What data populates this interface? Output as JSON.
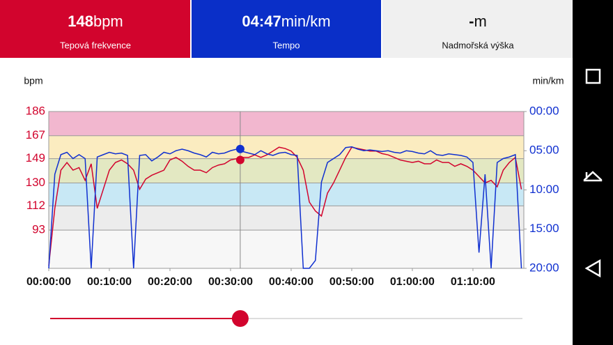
{
  "header": {
    "tiles": [
      {
        "value": "148",
        "unit": "bpm",
        "label": "Tepová frekvence"
      },
      {
        "value": "04:47",
        "unit": "min/km",
        "label": "Tempo"
      },
      {
        "value": "-",
        "unit": "m",
        "label": "Nadmořská výška"
      }
    ]
  },
  "chart_data": {
    "type": "line",
    "y_label": "bpm",
    "y2_label": "min/km",
    "xlim": [
      0,
      78.4
    ],
    "xticks": [
      {
        "value": 0,
        "label": "00:00:00"
      },
      {
        "value": 10,
        "label": "00:10:00"
      },
      {
        "value": 20,
        "label": "00:20:00"
      },
      {
        "value": 30,
        "label": "00:30:00"
      },
      {
        "value": 40,
        "label": "00:40:00"
      },
      {
        "value": 50,
        "label": "00:50:00"
      },
      {
        "value": 60,
        "label": "01:00:00"
      },
      {
        "value": 70,
        "label": "01:10:00"
      }
    ],
    "ylim": [
      63,
      186
    ],
    "yticks": [
      93,
      112,
      130,
      149,
      167,
      186
    ],
    "y2lim": [
      20,
      0
    ],
    "y2ticks": [
      {
        "value": 0,
        "label": "00:00"
      },
      {
        "value": 5,
        "label": "05:00"
      },
      {
        "value": 10,
        "label": "10:00"
      },
      {
        "value": 15,
        "label": "15:00"
      },
      {
        "value": 20,
        "label": "20:00"
      }
    ],
    "zone_colors": [
      "#f7f7f7",
      "#ececec",
      "#c8e8f5",
      "#e3e8c2",
      "#fbecc0",
      "#f2b7cf"
    ],
    "x": [
      0,
      1,
      2,
      3,
      4,
      5,
      6,
      7,
      8,
      9,
      10,
      11,
      12,
      13,
      14,
      15,
      16,
      17,
      18,
      19,
      20,
      21,
      22,
      23,
      24,
      25,
      26,
      27,
      28,
      29,
      30,
      31,
      32,
      33,
      34,
      35,
      36,
      37,
      38,
      39,
      40,
      41,
      42,
      43,
      44,
      45,
      46,
      47,
      48,
      49,
      50,
      51,
      52,
      53,
      54,
      55,
      56,
      57,
      58,
      59,
      60,
      61,
      62,
      63,
      64,
      65,
      66,
      67,
      68,
      69,
      70,
      71,
      72,
      73,
      74,
      75,
      76,
      77,
      78
    ],
    "series": [
      {
        "color": "#d2042d",
        "values": [
          65,
          110,
          140,
          146,
          140,
          142,
          132,
          145,
          110,
          125,
          140,
          146,
          148,
          145,
          140,
          125,
          133,
          136,
          138,
          140,
          148,
          150,
          147,
          143,
          140,
          140,
          138,
          142,
          144,
          145,
          148,
          149,
          150,
          150,
          152,
          150,
          152,
          155,
          158,
          157,
          155,
          150,
          140,
          115,
          108,
          104,
          122,
          130,
          140,
          150,
          158,
          157,
          156,
          155,
          155,
          153,
          152,
          150,
          148,
          147,
          146,
          147,
          145,
          145,
          148,
          146,
          146,
          143,
          145,
          143,
          140,
          135,
          130,
          132,
          127,
          140,
          146,
          150,
          125
        ]
      },
      {
        "color": "#1030d0",
        "axis": "y2",
        "values": [
          20,
          8,
          5.5,
          5.2,
          6,
          5.5,
          6,
          20,
          5.8,
          5.5,
          5.2,
          5.4,
          5.3,
          5.6,
          20,
          5.6,
          5.5,
          6.3,
          5.8,
          5.2,
          5.4,
          5.0,
          4.8,
          5.0,
          5.3,
          5.5,
          5.8,
          5.2,
          5.4,
          5.3,
          5.0,
          4.8,
          5.1,
          5.3,
          5.5,
          5.0,
          5.4,
          5.6,
          5.3,
          5.2,
          5.5,
          5.6,
          20,
          20,
          19,
          9,
          6.5,
          6,
          5.5,
          4.6,
          4.5,
          4.8,
          5.0,
          4.9,
          5.0,
          5.1,
          5.0,
          5.2,
          5.3,
          5.0,
          5.1,
          5.3,
          5.4,
          5.0,
          5.5,
          5.6,
          5.4,
          5.5,
          5.6,
          5.8,
          6.5,
          18,
          8,
          20,
          6.5,
          6.0,
          5.8,
          5.5,
          20
        ]
      }
    ],
    "cursor": {
      "x": 31.6,
      "hr": 148,
      "pace": 4.78
    }
  }
}
